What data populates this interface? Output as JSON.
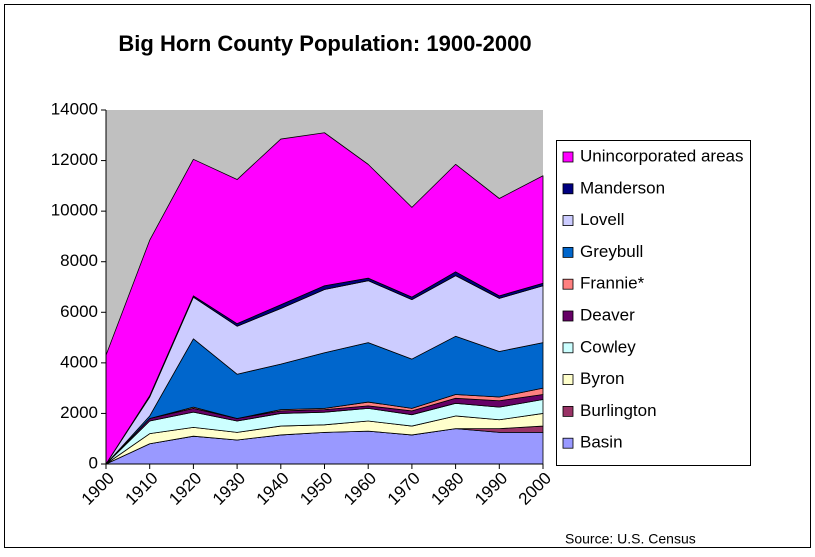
{
  "chart_data": {
    "type": "stacked_area",
    "title": "Big Horn County Population:  1900-2000",
    "annotation": "Source:  U.S. Census",
    "categories": [
      "1900",
      "1910",
      "1920",
      "1930",
      "1940",
      "1950",
      "1960",
      "1970",
      "1980",
      "1990",
      "2000"
    ],
    "series": [
      {
        "name": "Basin",
        "color": "#9999ff",
        "values": [
          0,
          800,
          1100,
          950,
          1150,
          1250,
          1300,
          1150,
          1400,
          1250,
          1250
        ]
      },
      {
        "name": "Burlington",
        "color": "#993366",
        "values": [
          0,
          0,
          0,
          0,
          0,
          0,
          0,
          0,
          0,
          150,
          250
        ]
      },
      {
        "name": "Byron",
        "color": "#ffffcc",
        "values": [
          0,
          400,
          350,
          300,
          350,
          300,
          400,
          350,
          500,
          350,
          500
        ]
      },
      {
        "name": "Cowley",
        "color": "#ccffff",
        "values": [
          0,
          500,
          600,
          450,
          500,
          500,
          500,
          450,
          500,
          500,
          550
        ]
      },
      {
        "name": "Deaver",
        "color": "#660066",
        "values": [
          0,
          100,
          150,
          100,
          100,
          100,
          100,
          150,
          200,
          250,
          200
        ]
      },
      {
        "name": "Frannie*",
        "color": "#ff8080",
        "values": [
          0,
          0,
          50,
          0,
          50,
          50,
          150,
          100,
          150,
          150,
          250
        ]
      },
      {
        "name": "Greybull",
        "color": "#0066cc",
        "values": [
          0,
          100,
          2700,
          1750,
          1800,
          2200,
          2350,
          1950,
          2300,
          1800,
          1800
        ]
      },
      {
        "name": "Lovell",
        "color": "#ccccff",
        "values": [
          0,
          750,
          1650,
          1900,
          2200,
          2500,
          2450,
          2350,
          2400,
          2100,
          2250
        ]
      },
      {
        "name": "Manderson",
        "color": "#000080",
        "values": [
          0,
          50,
          50,
          100,
          150,
          150,
          100,
          100,
          150,
          100,
          100
        ]
      },
      {
        "name": "Unincorporated areas",
        "color": "#ff00ff",
        "values": [
          4300,
          6150,
          5400,
          5700,
          6550,
          6050,
          4500,
          3550,
          4250,
          3850,
          4250
        ]
      }
    ],
    "ylim": [
      0,
      14000
    ],
    "yticks": [
      0,
      2000,
      4000,
      6000,
      8000,
      10000,
      12000,
      14000
    ],
    "plot_background": "#c0c0c0"
  }
}
